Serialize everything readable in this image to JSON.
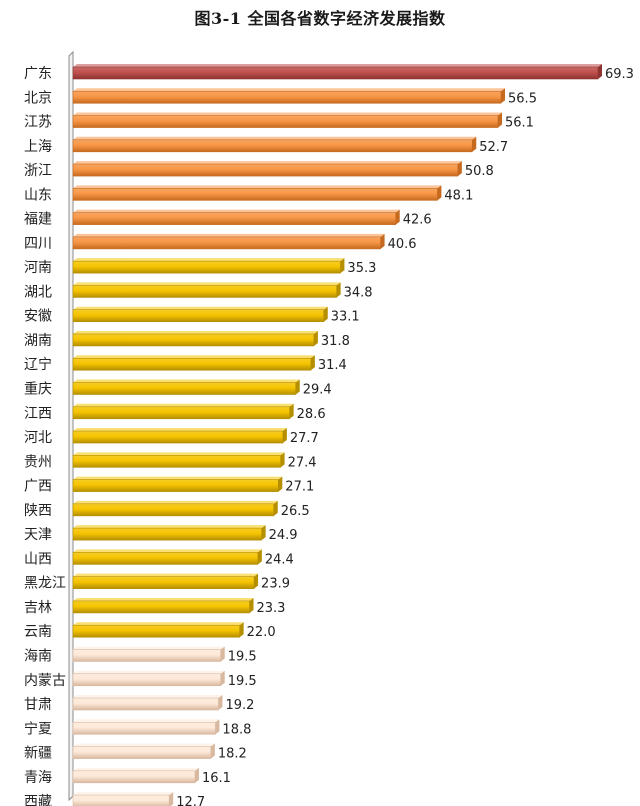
{
  "chart_data": {
    "type": "bar",
    "orientation": "horizontal",
    "title": "图3-1  全国各省数字经济发展指数",
    "xlabel": "",
    "ylabel": "",
    "xlim": [
      0,
      70
    ],
    "grid": false,
    "legend": "none",
    "categories": [
      "广东",
      "北京",
      "江苏",
      "上海",
      "浙江",
      "山东",
      "福建",
      "四川",
      "河南",
      "湖北",
      "安徽",
      "湖南",
      "辽宁",
      "重庆",
      "江西",
      "河北",
      "贵州",
      "广西",
      "陕西",
      "天津",
      "山西",
      "黑龙江",
      "吉林",
      "云南",
      "海南",
      "内蒙古",
      "甘肃",
      "宁夏",
      "新疆",
      "青海",
      "西藏"
    ],
    "values": [
      69.3,
      56.5,
      56.1,
      52.7,
      50.8,
      48.1,
      42.6,
      40.6,
      35.3,
      34.8,
      33.1,
      31.8,
      31.4,
      29.4,
      28.6,
      27.7,
      27.4,
      27.1,
      26.5,
      24.9,
      24.4,
      23.9,
      23.3,
      22.0,
      19.5,
      19.5,
      19.2,
      18.8,
      18.2,
      16.1,
      12.7
    ],
    "value_labels": [
      "69.3",
      "56.5",
      "56.1",
      "52.7",
      "50.8",
      "48.1",
      "42.6",
      "40.6",
      "35.3",
      "34.8",
      "33.1",
      "31.8",
      "31.4",
      "29.4",
      "28.6",
      "27.7",
      "27.4",
      "27.1",
      "26.5",
      "24.9",
      "24.4",
      "23.9",
      "23.3",
      "22.0",
      "19.5",
      "19.5",
      "19.2",
      "18.8",
      "18.2",
      "16.1",
      "12.7"
    ],
    "tiers": [
      {
        "count": 1,
        "color": "#c0504d",
        "dark": "#8e3432"
      },
      {
        "count": 7,
        "color": "#f79646",
        "dark": "#c66a1f"
      },
      {
        "count": 16,
        "color": "#f5c400",
        "dark": "#b58f00"
      },
      {
        "count": 7,
        "color": "#fde9d9",
        "dark": "#d9b8a0"
      }
    ]
  }
}
